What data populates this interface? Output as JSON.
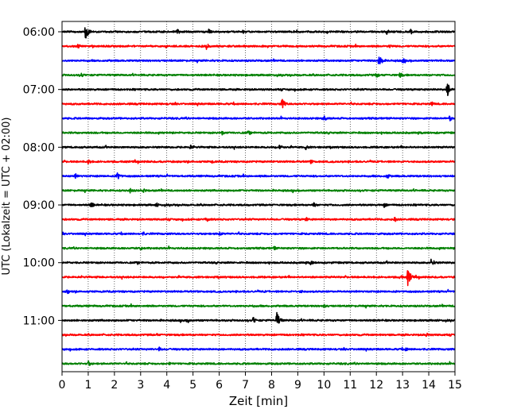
{
  "chart_data": {
    "type": "line",
    "title": "",
    "xlabel": "Zeit  [min]",
    "ylabel": "UTC (Lokalzeit = UTC + 02:00)",
    "xlim": [
      0,
      15
    ],
    "x_ticks": [
      0,
      1,
      2,
      3,
      4,
      5,
      6,
      7,
      8,
      9,
      10,
      11,
      12,
      13,
      14,
      15
    ],
    "y_tick_labels": [
      "06:00",
      "07:00",
      "08:00",
      "09:00",
      "10:00",
      "11:00"
    ],
    "grid": "vertical dotted",
    "trace_interval_minutes": 15,
    "trace_colors": [
      "#000000",
      "#ff0000",
      "#0000ff",
      "#008000"
    ],
    "series": [
      {
        "start": "06:00",
        "events": [
          [
            0.9,
            1.0
          ],
          [
            4.4,
            0.35
          ],
          [
            5.6,
            0.35
          ],
          [
            12.4,
            0.3
          ],
          [
            13.3,
            0.35
          ]
        ]
      },
      {
        "start": "06:15",
        "events": [
          [
            0.6,
            0.3
          ],
          [
            5.5,
            0.45
          ],
          [
            12.5,
            0.25
          ]
        ]
      },
      {
        "start": "06:30",
        "events": [
          [
            12.1,
            0.75
          ],
          [
            13.0,
            0.35
          ]
        ]
      },
      {
        "start": "06:45",
        "events": [
          [
            0.7,
            0.35
          ],
          [
            12.0,
            0.35
          ],
          [
            12.9,
            0.35
          ]
        ]
      },
      {
        "start": "07:00",
        "events": [
          [
            14.7,
            0.9
          ]
        ]
      },
      {
        "start": "07:15",
        "events": [
          [
            8.4,
            0.7
          ],
          [
            14.1,
            0.3
          ]
        ]
      },
      {
        "start": "07:30",
        "events": [
          [
            10.0,
            0.35
          ],
          [
            14.8,
            0.35
          ]
        ]
      },
      {
        "start": "07:45",
        "events": [
          [
            6.1,
            0.3
          ],
          [
            7.1,
            0.25
          ]
        ]
      },
      {
        "start": "08:00",
        "events": [
          [
            4.9,
            0.3
          ],
          [
            8.3,
            0.4
          ],
          [
            9.3,
            0.3
          ]
        ]
      },
      {
        "start": "08:15",
        "events": [
          [
            1.0,
            0.4
          ],
          [
            5.7,
            0.25
          ],
          [
            9.5,
            0.25
          ]
        ]
      },
      {
        "start": "08:30",
        "events": [
          [
            0.5,
            0.35
          ],
          [
            2.1,
            0.55
          ],
          [
            12.4,
            0.35
          ]
        ]
      },
      {
        "start": "08:45",
        "events": [
          [
            2.6,
            0.3
          ],
          [
            3.1,
            0.25
          ]
        ]
      },
      {
        "start": "09:00",
        "events": [
          [
            1.1,
            0.4
          ],
          [
            3.6,
            0.3
          ],
          [
            9.6,
            0.3
          ],
          [
            12.3,
            0.3
          ]
        ]
      },
      {
        "start": "09:15",
        "events": [
          [
            5.5,
            0.4
          ],
          [
            9.3,
            0.3
          ],
          [
            12.7,
            0.3
          ]
        ]
      },
      {
        "start": "09:30",
        "events": [
          [
            6.0,
            0.35
          ],
          [
            3.1,
            0.25
          ]
        ]
      },
      {
        "start": "09:45",
        "events": [
          [
            3.0,
            0.3
          ],
          [
            8.1,
            0.25
          ]
        ]
      },
      {
        "start": "10:00",
        "events": [
          [
            9.5,
            0.35
          ],
          [
            14.1,
            0.55
          ]
        ]
      },
      {
        "start": "10:15",
        "events": [
          [
            12.9,
            0.35
          ],
          [
            13.2,
            1.0
          ]
        ]
      },
      {
        "start": "10:30",
        "events": [
          [
            0.2,
            0.3
          ],
          [
            9.1,
            0.25
          ]
        ]
      },
      {
        "start": "10:45",
        "events": [
          [
            10.0,
            0.3
          ],
          [
            7.3,
            0.2
          ]
        ]
      },
      {
        "start": "11:00",
        "events": [
          [
            4.8,
            0.3
          ],
          [
            7.3,
            0.45
          ],
          [
            8.2,
            0.95
          ]
        ]
      },
      {
        "start": "11:15",
        "events": [
          [
            13.9,
            0.3
          ],
          [
            3.6,
            0.2
          ]
        ]
      },
      {
        "start": "11:30",
        "events": [
          [
            3.7,
            0.3
          ],
          [
            13.1,
            0.3
          ]
        ]
      },
      {
        "start": "11:45",
        "events": [
          [
            1.0,
            0.35
          ],
          [
            4.1,
            0.2
          ]
        ]
      }
    ]
  }
}
